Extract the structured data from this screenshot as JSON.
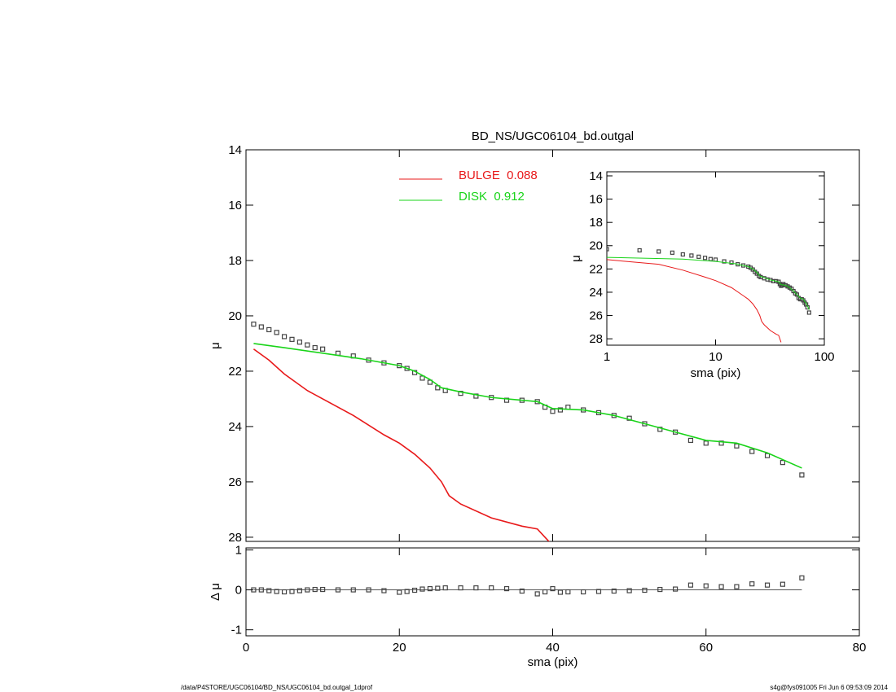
{
  "chart_data": [
    {
      "type": "line",
      "title": "BD_NS/UGC06104_bd.outgal",
      "ylabel": "μ",
      "xlim": [
        0,
        80
      ],
      "xticks": [
        0,
        20,
        40,
        60,
        80
      ],
      "show_xtick_labels": false,
      "ylim": [
        14,
        28.15
      ],
      "y_inverted": true,
      "yticks": [
        14,
        16,
        18,
        20,
        22,
        24,
        26,
        28
      ],
      "series": [
        {
          "color": "#444444",
          "marker": "square",
          "x": [
            1,
            2,
            3,
            4,
            5,
            6,
            7,
            8,
            9,
            10,
            12,
            14,
            16,
            18,
            20,
            21,
            22,
            23,
            24,
            25,
            26,
            28,
            30,
            32,
            34,
            36,
            38,
            39,
            40,
            41,
            42,
            44,
            46,
            48,
            50,
            52,
            54,
            56,
            58,
            60,
            62,
            64,
            66,
            68,
            70,
            72.5
          ],
          "values": [
            20.3,
            20.4,
            20.5,
            20.6,
            20.75,
            20.85,
            20.95,
            21.05,
            21.15,
            21.2,
            21.35,
            21.45,
            21.6,
            21.7,
            21.8,
            21.9,
            22.05,
            22.25,
            22.4,
            22.6,
            22.7,
            22.8,
            22.9,
            22.95,
            23.05,
            23.05,
            23.1,
            23.3,
            23.45,
            23.4,
            23.3,
            23.4,
            23.5,
            23.6,
            23.7,
            23.9,
            24.1,
            24.2,
            24.5,
            24.6,
            24.6,
            24.7,
            24.9,
            25.05,
            25.3,
            25.75
          ]
        },
        {
          "name": "BULGE  0.088",
          "color": "#e8191a",
          "x": [
            1,
            3,
            5,
            8,
            10,
            14,
            18,
            20,
            22,
            24,
            25.5,
            26.5,
            28,
            32,
            36,
            38,
            39,
            40
          ],
          "values": [
            21.2,
            21.6,
            22.1,
            22.7,
            23.0,
            23.6,
            24.3,
            24.6,
            25.0,
            25.5,
            26.0,
            26.5,
            26.8,
            27.3,
            27.6,
            27.7,
            28.0,
            28.3
          ]
        },
        {
          "name": "DISK  0.912",
          "color": "#19d419",
          "x": [
            1,
            5,
            10,
            15,
            20,
            22,
            24,
            25.5,
            28,
            32,
            36,
            38,
            40,
            44,
            48,
            52,
            56,
            60,
            64,
            68,
            72.5
          ],
          "values": [
            21.0,
            21.15,
            21.35,
            21.55,
            21.8,
            22.0,
            22.3,
            22.6,
            22.75,
            22.95,
            23.05,
            23.1,
            23.35,
            23.4,
            23.6,
            23.9,
            24.2,
            24.5,
            24.6,
            24.95,
            25.5
          ]
        }
      ]
    },
    {
      "type": "scatter",
      "ylabel": "Δ μ",
      "xlabel": "sma (pix)",
      "xlim": [
        0,
        80
      ],
      "xticks": [
        0,
        20,
        40,
        60,
        80
      ],
      "ylim": [
        -1.15,
        1.05
      ],
      "yticks": [
        -1,
        0,
        1
      ],
      "reference_line": 0,
      "series": [
        {
          "color": "#444444",
          "marker": "square",
          "x": [
            1,
            2,
            3,
            4,
            5,
            6,
            7,
            8,
            9,
            10,
            12,
            14,
            16,
            18,
            20,
            21,
            22,
            23,
            24,
            25,
            26,
            28,
            30,
            32,
            34,
            36,
            38,
            39,
            40,
            41,
            42,
            44,
            46,
            48,
            50,
            52,
            54,
            56,
            58,
            60,
            62,
            64,
            66,
            68,
            70,
            72.5
          ],
          "values": [
            0,
            0,
            -0.02,
            -0.04,
            -0.05,
            -0.04,
            -0.02,
            0,
            0.01,
            0.01,
            0,
            0,
            0,
            -0.02,
            -0.06,
            -0.04,
            -0.01,
            0.02,
            0.03,
            0.04,
            0.05,
            0.05,
            0.05,
            0.05,
            0.03,
            -0.03,
            -0.1,
            -0.05,
            0.03,
            -0.06,
            -0.05,
            -0.05,
            -0.04,
            -0.03,
            -0.02,
            -0.01,
            0.01,
            0.02,
            0.12,
            0.1,
            0.08,
            0.08,
            0.15,
            0.12,
            0.14,
            0.3
          ]
        }
      ]
    },
    {
      "type": "line",
      "xlabel": "sma (pix)",
      "ylabel": "μ",
      "xlog": true,
      "xlim": [
        1,
        100
      ],
      "xticks": [
        1,
        10,
        100
      ],
      "ylim": [
        13.65,
        28.55
      ],
      "y_inverted": true,
      "yticks": [
        14,
        16,
        18,
        20,
        22,
        24,
        26,
        28
      ],
      "series": [
        {
          "color": "#444444",
          "marker": "square",
          "x": [
            1,
            2,
            3,
            4,
            5,
            6,
            7,
            8,
            9,
            10,
            12,
            14,
            16,
            18,
            20,
            21,
            22,
            23,
            24,
            25,
            26,
            28,
            30,
            32,
            34,
            36,
            38,
            39,
            40,
            41,
            42,
            44,
            46,
            48,
            50,
            52,
            54,
            56,
            58,
            60,
            62,
            64,
            66,
            68,
            70,
            72.5
          ],
          "values": [
            20.3,
            20.4,
            20.5,
            20.6,
            20.75,
            20.85,
            20.95,
            21.05,
            21.15,
            21.2,
            21.35,
            21.45,
            21.6,
            21.7,
            21.8,
            21.9,
            22.05,
            22.25,
            22.4,
            22.6,
            22.7,
            22.8,
            22.9,
            22.95,
            23.05,
            23.05,
            23.1,
            23.3,
            23.45,
            23.4,
            23.3,
            23.4,
            23.5,
            23.6,
            23.7,
            23.9,
            24.1,
            24.2,
            24.5,
            24.6,
            24.6,
            24.7,
            24.9,
            25.05,
            25.3,
            25.75
          ]
        },
        {
          "color": "#e8191a",
          "x": [
            1,
            3,
            5,
            8,
            10,
            14,
            18,
            20,
            22,
            24,
            25.5,
            26.5,
            28,
            32,
            36,
            38,
            39,
            40
          ],
          "values": [
            21.2,
            21.6,
            22.1,
            22.7,
            23.0,
            23.6,
            24.3,
            24.6,
            25.0,
            25.5,
            26.0,
            26.5,
            26.8,
            27.3,
            27.6,
            27.7,
            28.0,
            28.3
          ]
        },
        {
          "color": "#19d419",
          "x": [
            1,
            5,
            10,
            15,
            20,
            22,
            24,
            25.5,
            28,
            32,
            36,
            38,
            40,
            44,
            48,
            52,
            56,
            60,
            64,
            68,
            72.5
          ],
          "values": [
            21.0,
            21.15,
            21.35,
            21.55,
            21.8,
            22.0,
            22.3,
            22.6,
            22.75,
            22.95,
            23.05,
            23.1,
            23.35,
            23.4,
            23.6,
            23.9,
            24.2,
            24.5,
            24.6,
            24.95,
            25.5
          ]
        }
      ]
    }
  ],
  "footer": {
    "left": "/data/P4STORE/UGC06104/BD_NS/UGC06104_bd.outgal_1dprof",
    "right": "s4g@fys091005  Fri Jun  6 09:53:09 2014"
  }
}
